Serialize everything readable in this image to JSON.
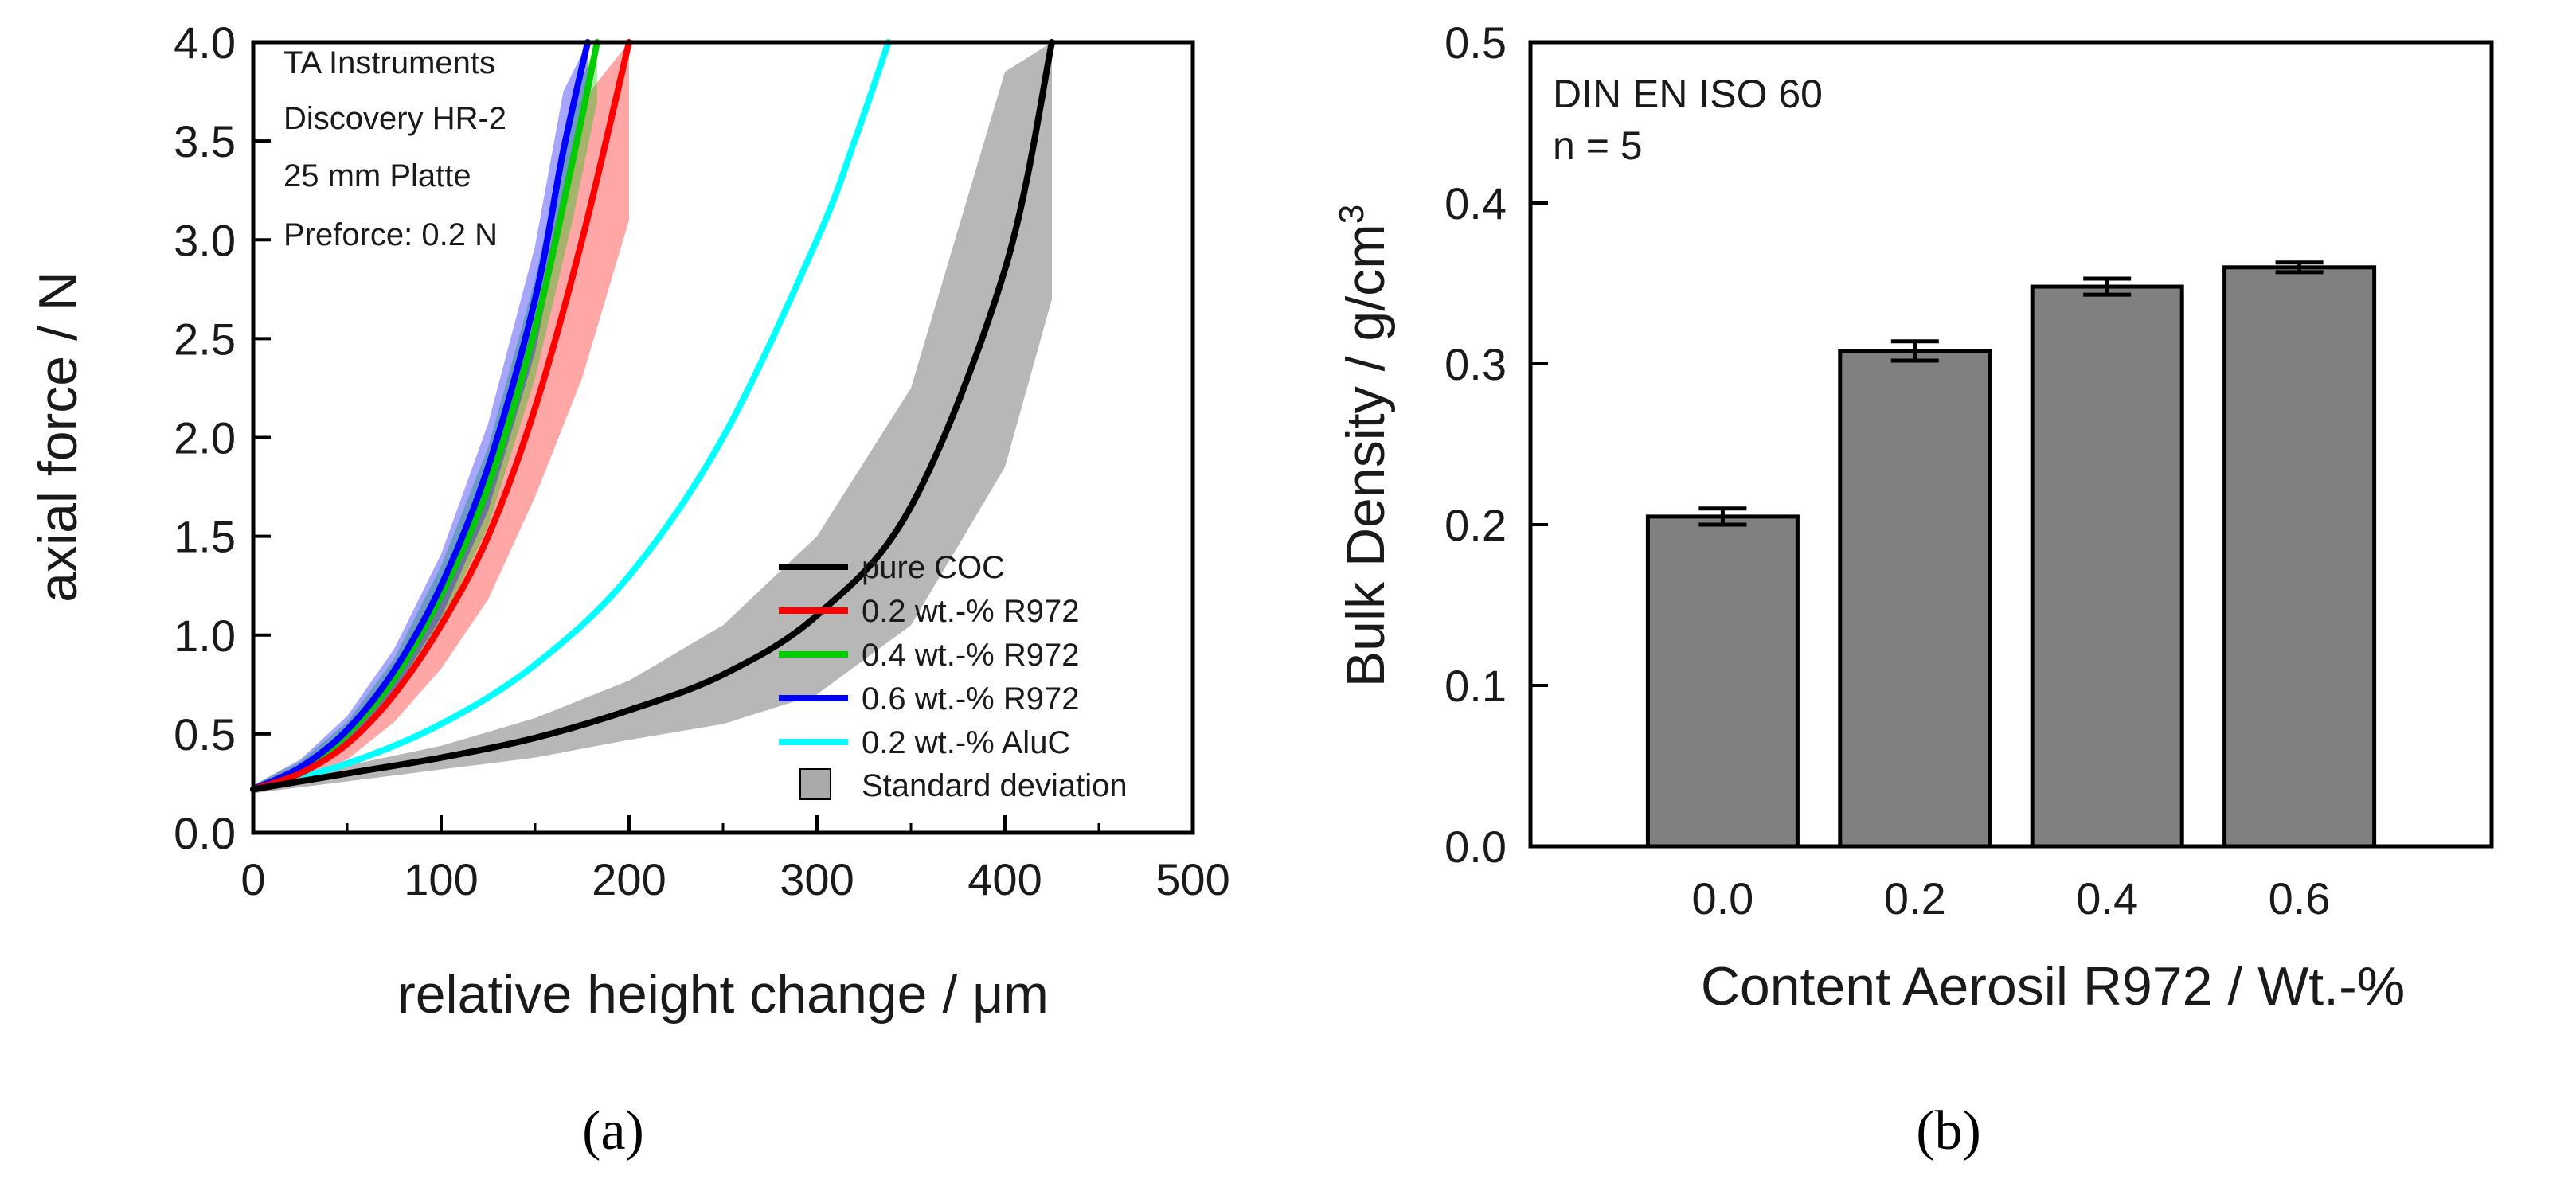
{
  "chart_data": [
    {
      "type": "line",
      "xlabel": "relative height change /  μm",
      "ylabel": "axial force / N",
      "xlim": [
        0,
        500
      ],
      "ylim": [
        0,
        4
      ],
      "xticks": [
        "0",
        "100",
        "200",
        "300",
        "400",
        "500"
      ],
      "yticks": [
        "0.0",
        "0.5",
        "1.0",
        "1.5",
        "2.0",
        "2.5",
        "3.0",
        "3.5",
        "4.0"
      ],
      "annotations": [
        "TA Instruments",
        "Discovery HR-2",
        "25 mm Platte",
        "Preforce: 0.2 N"
      ],
      "legend_position": "bottom-right",
      "std_label": "Standard deviation",
      "series": [
        {
          "name": "pure COC",
          "color": "#000000",
          "x": [
            0,
            50,
            100,
            150,
            200,
            250,
            300,
            350,
            400,
            425
          ],
          "y": [
            0.22,
            0.3,
            0.38,
            0.48,
            0.62,
            0.8,
            1.1,
            1.65,
            2.85,
            4.0
          ],
          "std": [
            0.02,
            0.04,
            0.06,
            0.1,
            0.15,
            0.25,
            0.4,
            0.6,
            1.0,
            1.3
          ]
        },
        {
          "name": "0.2 wt.-% R972",
          "color": "#ff0000",
          "x": [
            0,
            25,
            50,
            75,
            100,
            125,
            150,
            175,
            200
          ],
          "y": [
            0.22,
            0.3,
            0.45,
            0.7,
            1.05,
            1.5,
            2.15,
            3.0,
            4.0
          ],
          "std": [
            0.02,
            0.04,
            0.08,
            0.14,
            0.22,
            0.32,
            0.45,
            0.7,
            0.9
          ]
        },
        {
          "name": "0.4 wt.-% R972",
          "color": "#00cc00",
          "x": [
            0,
            25,
            50,
            75,
            100,
            125,
            150,
            170,
            183
          ],
          "y": [
            0.22,
            0.32,
            0.5,
            0.78,
            1.2,
            1.75,
            2.55,
            3.4,
            4.0
          ],
          "std": [
            0.02,
            0.04,
            0.06,
            0.1,
            0.15,
            0.2,
            0.25,
            0.3,
            0.3
          ]
        },
        {
          "name": "0.6 wt.-% R972",
          "color": "#0000ff",
          "x": [
            0,
            25,
            50,
            75,
            100,
            125,
            150,
            165,
            178
          ],
          "y": [
            0.22,
            0.33,
            0.52,
            0.82,
            1.25,
            1.85,
            2.7,
            3.45,
            4.0
          ],
          "std": [
            0.02,
            0.04,
            0.07,
            0.11,
            0.16,
            0.22,
            0.27,
            0.3,
            0.3
          ]
        },
        {
          "name": "0.2 wt.-% AluC",
          "color": "#00ffff",
          "x": [
            0,
            50,
            100,
            150,
            200,
            250,
            300,
            320,
            338
          ],
          "y": [
            0.22,
            0.35,
            0.55,
            0.85,
            1.3,
            2.0,
            3.0,
            3.5,
            4.0
          ],
          "std": []
        }
      ]
    },
    {
      "type": "bar",
      "xlabel": "Content Aerosil R972 / Wt.-%",
      "ylabel_main": "Bulk Density / g/cm",
      "ylabel_sup": "3",
      "ylim": [
        0,
        0.5
      ],
      "yticks": [
        "0.0",
        "0.1",
        "0.2",
        "0.3",
        "0.4",
        "0.5"
      ],
      "annotations": [
        "DIN EN ISO 60",
        "n = 5"
      ],
      "bar_color": "#808080",
      "categories": [
        "0.0",
        "0.2",
        "0.4",
        "0.6"
      ],
      "values": [
        0.205,
        0.308,
        0.348,
        0.36
      ],
      "errors": [
        0.005,
        0.006,
        0.005,
        0.003
      ]
    }
  ],
  "panel_labels": {
    "a": "(a)",
    "b": "(b)"
  }
}
